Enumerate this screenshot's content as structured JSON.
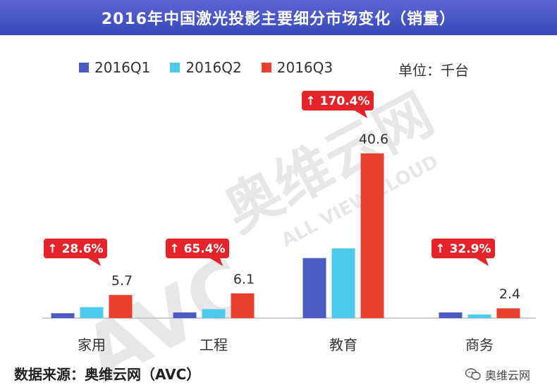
{
  "title": "2016年中国激光投影主要细分市场变化（销量）",
  "unit": "单位：千台",
  "source": "数据来源：奥维云网（AVC）",
  "brand": "奥维云网",
  "watermark": {
    "logo_text": "AVC",
    "cn": "奥维云网",
    "en": "ALL VIEW CLOUD"
  },
  "colors": {
    "title_bg": "#3f4fc0",
    "q1": "#4a5bc4",
    "q2": "#4dc9ec",
    "q3": "#e8402d",
    "callout": "#e3242b"
  },
  "chart_data": {
    "type": "bar",
    "categories": [
      "家用",
      "工程",
      "教育",
      "商务"
    ],
    "series": [
      {
        "name": "2016Q1",
        "values": [
          1.2,
          1.4,
          14.8,
          1.4
        ]
      },
      {
        "name": "2016Q2",
        "values": [
          2.7,
          2.2,
          17.2,
          0.9
        ]
      },
      {
        "name": "2016Q3",
        "values": [
          5.7,
          6.1,
          40.6,
          2.4
        ]
      }
    ],
    "data_labels": [
      "5.7",
      "6.1",
      "40.6",
      "2.4"
    ],
    "growth_labels": [
      "↑ 28.6%",
      "↑ 65.4%",
      "↑ 170.4%",
      "↑ 32.9%"
    ],
    "ylim": [
      0,
      40.6
    ],
    "legend_position": "top",
    "grid": false
  }
}
